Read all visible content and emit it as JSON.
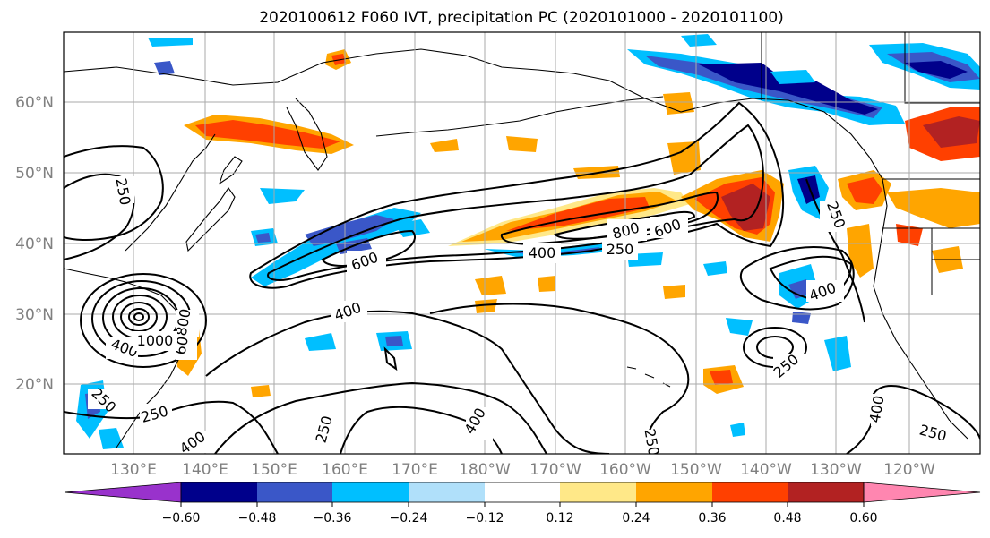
{
  "title": "2020100612 F060 IVT, precipitation PC (2020101000 - 2020101100)",
  "map": {
    "lat_labels": [
      "60°N",
      "50°N",
      "40°N",
      "30°N",
      "20°N"
    ],
    "lon_labels": [
      "130°E",
      "140°E",
      "150°E",
      "160°E",
      "170°E",
      "180°W",
      "170°W",
      "160°W",
      "150°W",
      "140°W",
      "130°W",
      "120°W"
    ],
    "ivt_contour_levels": [
      250,
      400,
      600,
      800,
      1000
    ],
    "contour_labels": [
      "250",
      "250",
      "250",
      "250",
      "250",
      "250",
      "250",
      "400",
      "400",
      "400",
      "400",
      "400",
      "600",
      "600",
      "800",
      "250",
      "400",
      "600",
      "800",
      "1000",
      "250",
      "400"
    ]
  },
  "colorbar": {
    "ticks": [
      "−0.60",
      "−0.48",
      "−0.36",
      "−0.24",
      "−0.12",
      "0.12",
      "0.24",
      "0.36",
      "0.48",
      "0.60"
    ],
    "colors": [
      "#9932cc",
      "#00008b",
      "#3a57c8",
      "#00bfff",
      "#b0e0fa",
      "#ffffff",
      "#ffe888",
      "#ffa500",
      "#ff4000",
      "#b22222",
      "#ff86b0"
    ]
  }
}
